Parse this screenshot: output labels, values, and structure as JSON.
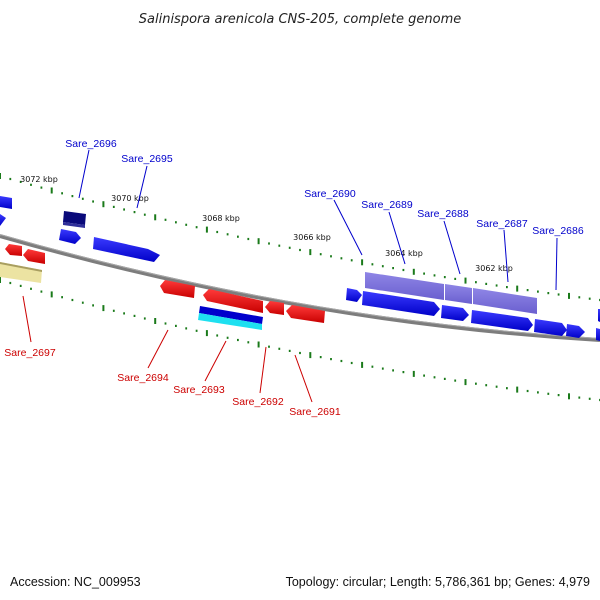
{
  "title": "Salinispora arenicola CNS-205, complete genome",
  "footer": {
    "accession": "Accession: NC_009953",
    "summary": "Topology: circular; Length: 5,786,361 bp; Genes: 4,979"
  },
  "colors": {
    "plus_strand": "#0000ee",
    "minus_strand": "#ee0000",
    "highlight": "#7a6fd8",
    "backbone": "#7d7d7d",
    "tick": "#1a7a1a",
    "label_plus": "#0000cc",
    "label_minus": "#cc0000"
  },
  "kbp_labels": [
    "3072 kbp",
    "3070 kbp",
    "3068 kbp",
    "3066 kbp",
    "3064 kbp",
    "3062 kbp"
  ],
  "gene_labels_top": [
    "Sare_2696",
    "Sare_2695",
    "Sare_2690",
    "Sare_2689",
    "Sare_2688",
    "Sare_2687",
    "Sare_2686"
  ],
  "gene_labels_bottom": [
    "Sare_2697",
    "Sare_2694",
    "Sare_2693",
    "Sare_2692",
    "Sare_2691"
  ]
}
